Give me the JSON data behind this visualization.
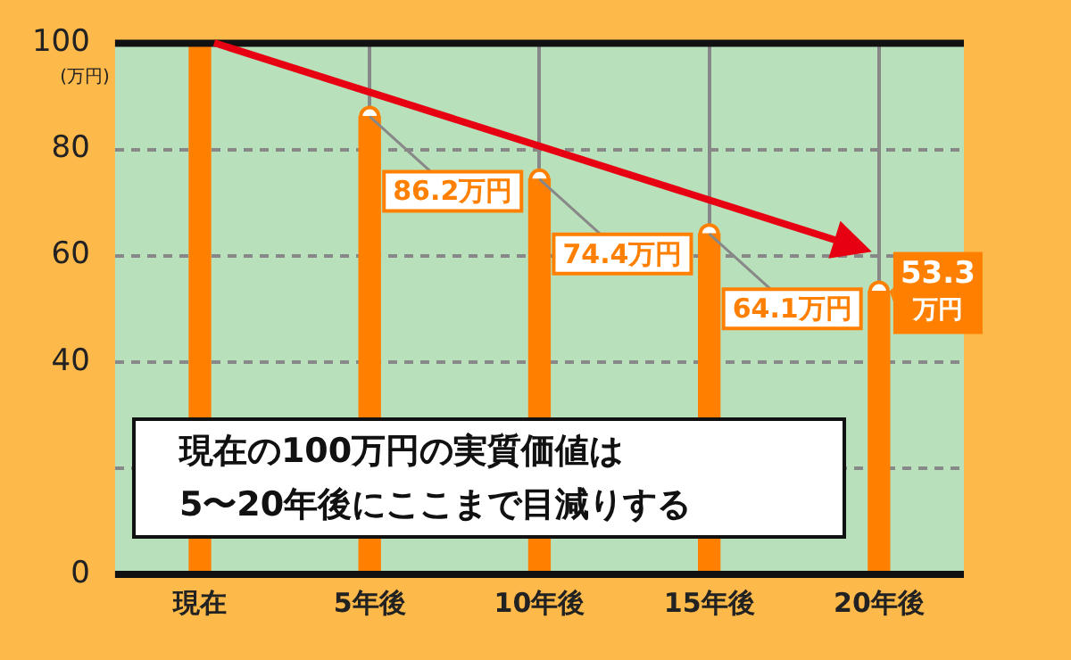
{
  "chart_data": {
    "type": "bar",
    "ylabel": "(万円)",
    "categories": [
      "現在",
      "5年後",
      "10年後",
      "15年後",
      "20年後"
    ],
    "values": [
      100,
      86.2,
      74.4,
      64.1,
      53.3
    ],
    "value_labels": [
      null,
      "86.2万円",
      "74.4万円",
      "64.1万円",
      "53.3万円"
    ],
    "color": "#ff8000",
    "ylim": [
      0,
      100
    ],
    "yticks": [
      0,
      {
        "value": 20,
        "label": null
      },
      40,
      60,
      80,
      100
    ],
    "grid": true,
    "legend": false,
    "annotations": [
      "現在の100万円の実質価値は\n5〜20年後にここまで目減りする"
    ]
  }
}
